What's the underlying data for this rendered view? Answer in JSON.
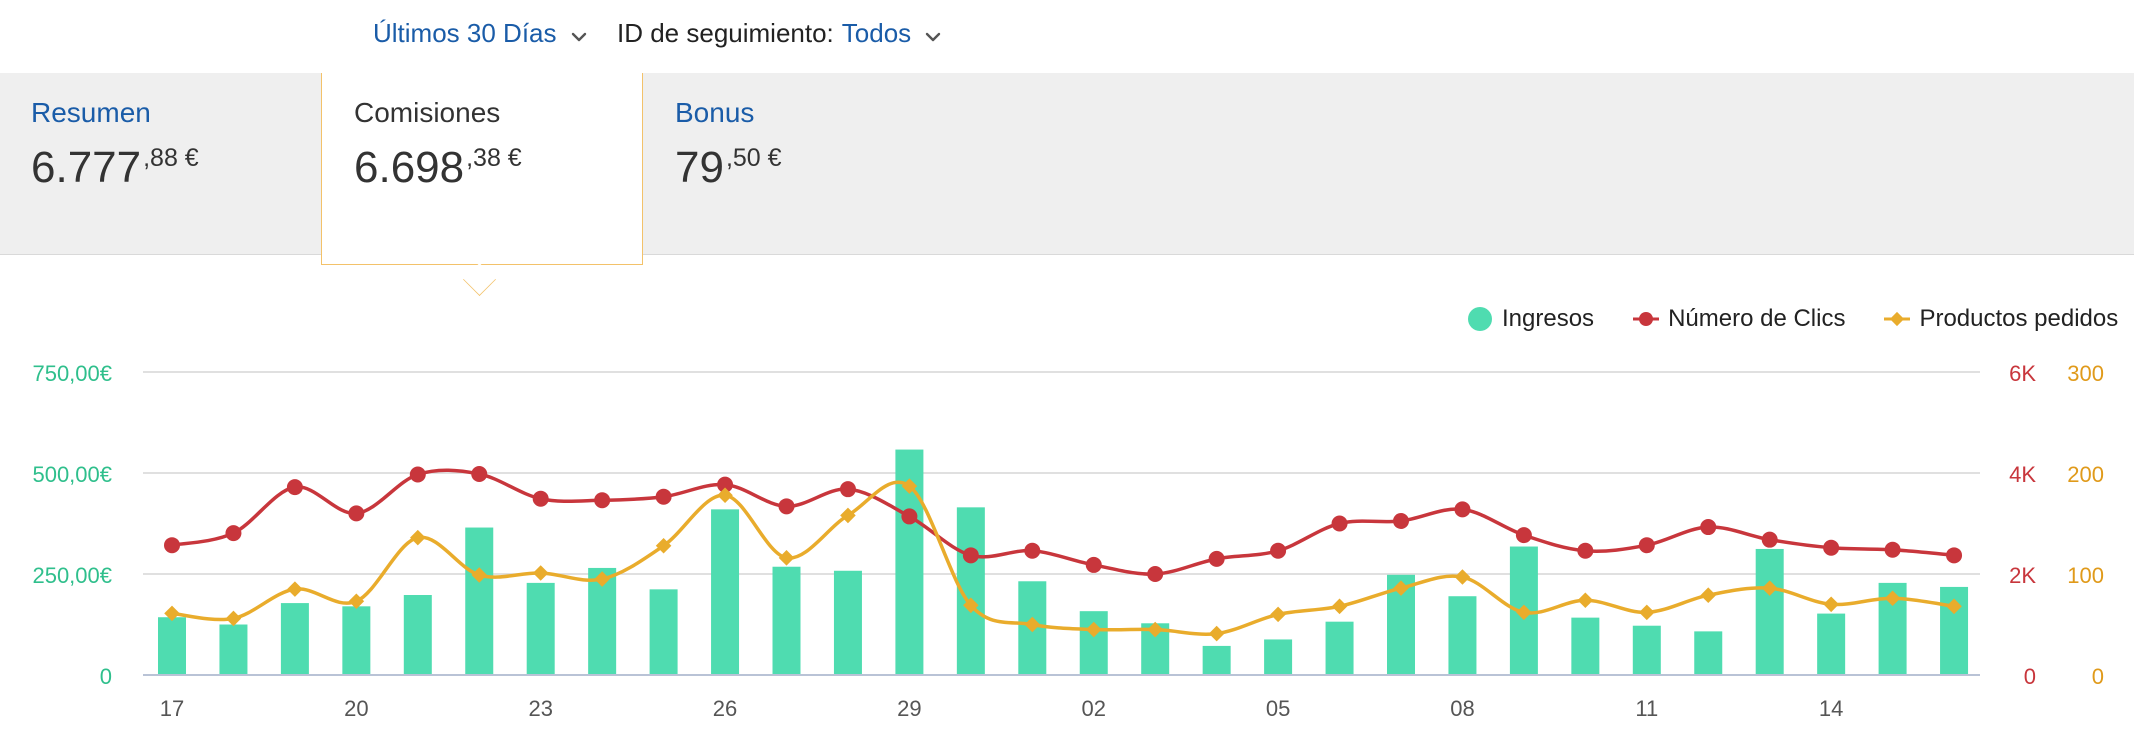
{
  "filters": {
    "period": "Últimos 30 Días",
    "tracking_label": "ID de seguimiento:",
    "tracking_value": "Todos"
  },
  "summary": [
    {
      "title": "Resumen",
      "int": "6.777",
      "dec": ",88 €"
    },
    {
      "title": "Comisiones",
      "int": "6.698",
      "dec": ",38 €"
    },
    {
      "title": "Bonus",
      "int": "79",
      "dec": ",50 €"
    }
  ],
  "colors": {
    "ingresos": "#4fdcb0",
    "clics": "#c8363c",
    "productos": "#e9ac2c",
    "left_axis": "#2fbf8c",
    "right_axis1": "#c8363c",
    "right_axis2": "#e09a1a",
    "link": "#1a5ca8"
  },
  "chart_data": {
    "type": "bar+line",
    "legend": [
      "Ingresos",
      "Número de Clics",
      "Productos pedidos"
    ],
    "legend_position": "top-right",
    "grid": true,
    "y_left": {
      "ticks": [
        "750,00€",
        "500,00€",
        "250,00€",
        "0"
      ],
      "range": [
        0,
        750
      ]
    },
    "y_right1": {
      "ticks": [
        "6K",
        "4K",
        "2K",
        "0"
      ],
      "range": [
        0,
        6000
      ]
    },
    "y_right2": {
      "ticks": [
        "300",
        "200",
        "100",
        "0"
      ],
      "range": [
        0,
        300
      ]
    },
    "x_tick_labels": [
      "17",
      "20",
      "23",
      "26",
      "29",
      "02",
      "05",
      "08",
      "11",
      "14"
    ],
    "x_tick_every": 3,
    "points": 30,
    "series": [
      {
        "name": "Ingresos",
        "type": "bar",
        "axis": "left",
        "values": [
          143,
          125,
          178,
          170,
          198,
          365,
          228,
          265,
          212,
          410,
          268,
          258,
          558,
          415,
          232,
          158,
          128,
          72,
          88,
          132,
          248,
          195,
          318,
          142,
          122,
          108,
          312,
          152,
          228,
          218
        ]
      },
      {
        "name": "Número de Clics",
        "type": "line",
        "axis": "right1",
        "values": [
          2570,
          2810,
          3720,
          3200,
          3970,
          3980,
          3490,
          3460,
          3530,
          3770,
          3340,
          3680,
          3140,
          2370,
          2460,
          2180,
          2000,
          2300,
          2460,
          3000,
          3050,
          3280,
          2770,
          2460,
          2570,
          2930,
          2680,
          2520,
          2480,
          2370
        ]
      },
      {
        "name": "Productos pedidos",
        "type": "line",
        "axis": "right2",
        "values": [
          61,
          56,
          85,
          73,
          136,
          99,
          101,
          95,
          128,
          178,
          116,
          158,
          187,
          69,
          50,
          45,
          45,
          41,
          60,
          68,
          86,
          97,
          62,
          74,
          62,
          79,
          86,
          70,
          76,
          68
        ]
      }
    ]
  }
}
